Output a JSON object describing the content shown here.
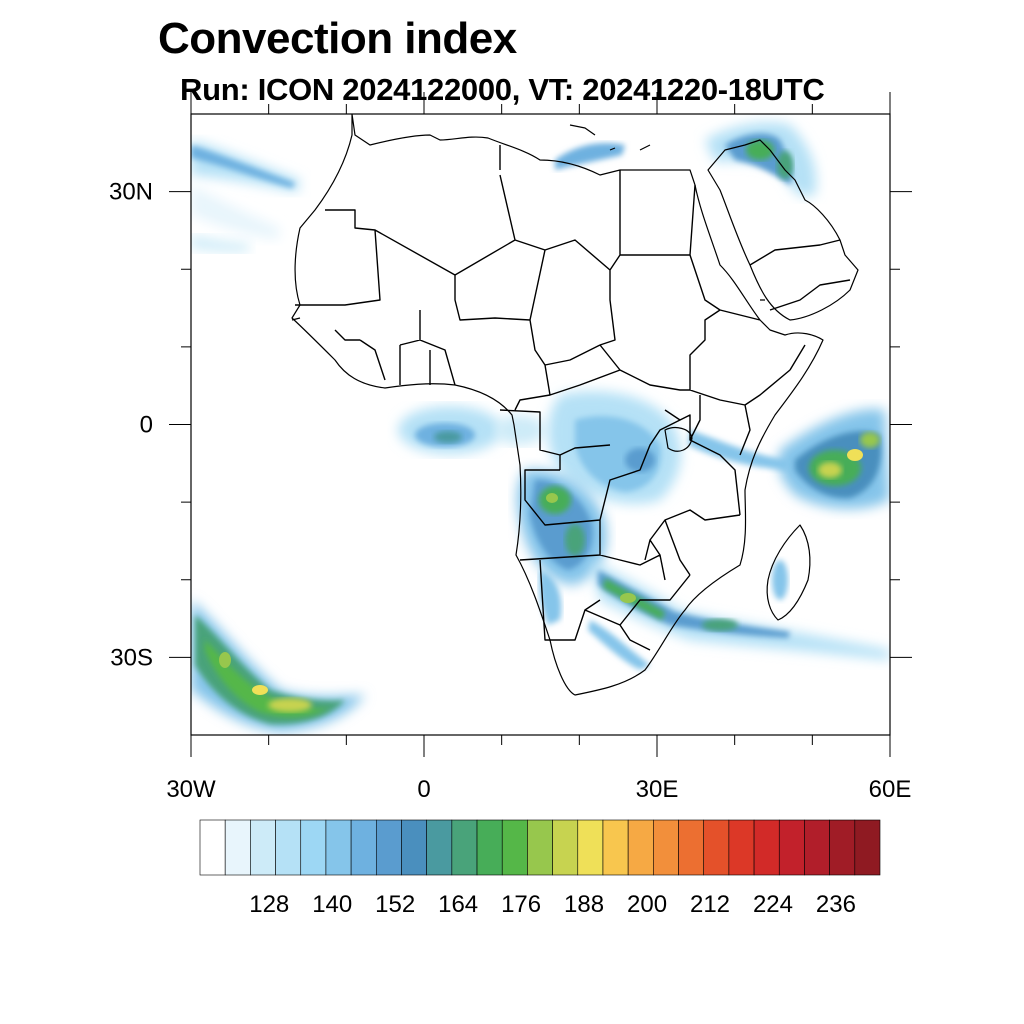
{
  "header": {
    "title": "Convection index",
    "subtitle": "Run: ICON 2024122000,  VT: 20241220-18UTC"
  },
  "map": {
    "lon_range": [
      -30,
      60
    ],
    "lat_range": [
      -40,
      40
    ],
    "lon_tick_labels": [
      {
        "lon": -30,
        "label": "30W"
      },
      {
        "lon": 0,
        "label": "0"
      },
      {
        "lon": 30,
        "label": "30E"
      },
      {
        "lon": 60,
        "label": "60E"
      }
    ],
    "lat_tick_labels": [
      {
        "lat": 30,
        "label": "30N"
      },
      {
        "lat": 0,
        "label": "0"
      },
      {
        "lat": -30,
        "label": "30S"
      }
    ],
    "minor_lon_ticks": [
      -20,
      -10,
      10,
      20,
      40,
      50
    ],
    "minor_lat_ticks": [
      20,
      10,
      -10,
      -20
    ]
  },
  "colorbar": {
    "colors": [
      "#ffffff",
      "#e8f5fc",
      "#cdebf8",
      "#b5e1f6",
      "#9dd7f4",
      "#85c5ea",
      "#6eb1e0",
      "#5a9ccf",
      "#4a8fbe",
      "#4a9aa0",
      "#49a37a",
      "#47ad58",
      "#55b748",
      "#97c74d",
      "#c7d350",
      "#efe058",
      "#f8c64e",
      "#f6a944",
      "#f28f3b",
      "#ec6f31",
      "#e4512a",
      "#dc3827",
      "#d22a28",
      "#c2212b",
      "#b11e2a",
      "#a01c26",
      "#8f1a22"
    ],
    "labels": [
      "128",
      "140",
      "152",
      "164",
      "176",
      "188",
      "200",
      "212",
      "224",
      "236"
    ]
  },
  "convection_cells": [
    {
      "region": "north-atlantic-band",
      "intensity": "low"
    },
    {
      "region": "eastern-mediterranean",
      "intensity": "moderate"
    },
    {
      "region": "gulf-of-guinea",
      "intensity": "low"
    },
    {
      "region": "congo-basin",
      "intensity": "moderate"
    },
    {
      "region": "angola-zambia",
      "intensity": "moderate-high"
    },
    {
      "region": "southern-africa-band",
      "intensity": "high"
    },
    {
      "region": "western-indian-ocean",
      "intensity": "high"
    },
    {
      "region": "south-atlantic",
      "intensity": "high"
    }
  ]
}
